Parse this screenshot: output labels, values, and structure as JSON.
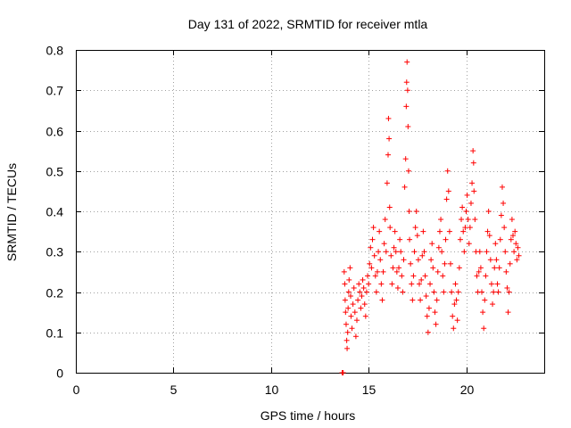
{
  "chart_data": {
    "type": "scatter",
    "title": "Day 131 of 2022, SRMTID for receiver mtla",
    "xlabel": "GPS time / hours",
    "ylabel": "SRMTID / TECUs",
    "xlim": [
      0,
      24
    ],
    "ylim": [
      0,
      0.8
    ],
    "xticks": [
      0,
      5,
      10,
      15,
      20
    ],
    "yticks": [
      0,
      0.1,
      0.2,
      0.3,
      0.4,
      0.5,
      0.6,
      0.7,
      0.8
    ],
    "grid": true,
    "marker": "+",
    "color": "#ff0000",
    "series": [
      {
        "name": "SRMTID",
        "points": [
          [
            13.65,
            0.0
          ],
          [
            13.65,
            0.0
          ],
          [
            13.7,
            0.0
          ],
          [
            13.75,
            0.25
          ],
          [
            13.78,
            0.22
          ],
          [
            13.8,
            0.18
          ],
          [
            13.82,
            0.15
          ],
          [
            13.85,
            0.12
          ],
          [
            13.88,
            0.08
          ],
          [
            13.9,
            0.06
          ],
          [
            13.93,
            0.1
          ],
          [
            13.95,
            0.16
          ],
          [
            13.98,
            0.2
          ],
          [
            14.0,
            0.23
          ],
          [
            14.05,
            0.26
          ],
          [
            14.08,
            0.19
          ],
          [
            14.1,
            0.14
          ],
          [
            14.15,
            0.11
          ],
          [
            14.2,
            0.17
          ],
          [
            14.25,
            0.21
          ],
          [
            14.3,
            0.15
          ],
          [
            14.35,
            0.09
          ],
          [
            14.4,
            0.13
          ],
          [
            14.45,
            0.18
          ],
          [
            14.5,
            0.22
          ],
          [
            14.55,
            0.2
          ],
          [
            14.6,
            0.16
          ],
          [
            14.65,
            0.19
          ],
          [
            14.7,
            0.23
          ],
          [
            14.75,
            0.21
          ],
          [
            14.8,
            0.17
          ],
          [
            14.85,
            0.14
          ],
          [
            14.9,
            0.2
          ],
          [
            14.95,
            0.24
          ],
          [
            15.0,
            0.22
          ],
          [
            15.05,
            0.27
          ],
          [
            15.1,
            0.31
          ],
          [
            15.15,
            0.26
          ],
          [
            15.2,
            0.33
          ],
          [
            15.25,
            0.36
          ],
          [
            15.3,
            0.29
          ],
          [
            15.35,
            0.24
          ],
          [
            15.4,
            0.2
          ],
          [
            15.45,
            0.25
          ],
          [
            15.5,
            0.3
          ],
          [
            15.55,
            0.35
          ],
          [
            15.6,
            0.28
          ],
          [
            15.65,
            0.22
          ],
          [
            15.7,
            0.18
          ],
          [
            15.75,
            0.25
          ],
          [
            15.8,
            0.32
          ],
          [
            15.85,
            0.38
          ],
          [
            15.9,
            0.3
          ],
          [
            15.95,
            0.47
          ],
          [
            16.0,
            0.54
          ],
          [
            16.02,
            0.63
          ],
          [
            16.05,
            0.58
          ],
          [
            16.08,
            0.41
          ],
          [
            16.1,
            0.36
          ],
          [
            16.15,
            0.29
          ],
          [
            16.2,
            0.22
          ],
          [
            16.25,
            0.26
          ],
          [
            16.3,
            0.31
          ],
          [
            16.35,
            0.35
          ],
          [
            16.4,
            0.3
          ],
          [
            16.45,
            0.25
          ],
          [
            16.5,
            0.21
          ],
          [
            16.55,
            0.26
          ],
          [
            16.6,
            0.33
          ],
          [
            16.65,
            0.3
          ],
          [
            16.7,
            0.24
          ],
          [
            16.75,
            0.2
          ],
          [
            16.8,
            0.28
          ],
          [
            16.85,
            0.46
          ],
          [
            16.9,
            0.53
          ],
          [
            16.93,
            0.66
          ],
          [
            16.95,
            0.72
          ],
          [
            16.97,
            0.77
          ],
          [
            17.0,
            0.7
          ],
          [
            17.02,
            0.61
          ],
          [
            17.05,
            0.5
          ],
          [
            17.08,
            0.4
          ],
          [
            17.1,
            0.33
          ],
          [
            17.15,
            0.27
          ],
          [
            17.2,
            0.22
          ],
          [
            17.25,
            0.18
          ],
          [
            17.3,
            0.24
          ],
          [
            17.35,
            0.3
          ],
          [
            17.4,
            0.36
          ],
          [
            17.45,
            0.4
          ],
          [
            17.5,
            0.34
          ],
          [
            17.55,
            0.28
          ],
          [
            17.6,
            0.22
          ],
          [
            17.65,
            0.18
          ],
          [
            17.7,
            0.23
          ],
          [
            17.75,
            0.29
          ],
          [
            17.8,
            0.35
          ],
          [
            17.85,
            0.3
          ],
          [
            17.9,
            0.24
          ],
          [
            17.95,
            0.19
          ],
          [
            18.0,
            0.14
          ],
          [
            18.05,
            0.1
          ],
          [
            18.1,
            0.16
          ],
          [
            18.15,
            0.22
          ],
          [
            18.2,
            0.28
          ],
          [
            18.25,
            0.32
          ],
          [
            18.3,
            0.26
          ],
          [
            18.35,
            0.2
          ],
          [
            18.4,
            0.15
          ],
          [
            18.45,
            0.12
          ],
          [
            18.5,
            0.18
          ],
          [
            18.55,
            0.25
          ],
          [
            18.6,
            0.31
          ],
          [
            18.65,
            0.35
          ],
          [
            18.7,
            0.38
          ],
          [
            18.75,
            0.3
          ],
          [
            18.8,
            0.24
          ],
          [
            18.85,
            0.2
          ],
          [
            18.9,
            0.27
          ],
          [
            18.95,
            0.33
          ],
          [
            19.0,
            0.43
          ],
          [
            19.05,
            0.5
          ],
          [
            19.1,
            0.45
          ],
          [
            19.15,
            0.35
          ],
          [
            19.2,
            0.27
          ],
          [
            19.25,
            0.2
          ],
          [
            19.3,
            0.14
          ],
          [
            19.35,
            0.11
          ],
          [
            19.4,
            0.17
          ],
          [
            19.45,
            0.22
          ],
          [
            19.5,
            0.18
          ],
          [
            19.55,
            0.13
          ],
          [
            19.6,
            0.2
          ],
          [
            19.65,
            0.26
          ],
          [
            19.7,
            0.33
          ],
          [
            19.75,
            0.38
          ],
          [
            19.8,
            0.41
          ],
          [
            19.85,
            0.35
          ],
          [
            19.9,
            0.3
          ],
          [
            19.95,
            0.36
          ],
          [
            20.0,
            0.4
          ],
          [
            20.05,
            0.44
          ],
          [
            20.1,
            0.38
          ],
          [
            20.15,
            0.32
          ],
          [
            20.2,
            0.36
          ],
          [
            20.25,
            0.42
          ],
          [
            20.3,
            0.47
          ],
          [
            20.35,
            0.55
          ],
          [
            20.38,
            0.52
          ],
          [
            20.4,
            0.45
          ],
          [
            20.45,
            0.38
          ],
          [
            20.5,
            0.3
          ],
          [
            20.55,
            0.24
          ],
          [
            20.6,
            0.2
          ],
          [
            20.65,
            0.25
          ],
          [
            20.7,
            0.3
          ],
          [
            20.75,
            0.26
          ],
          [
            20.8,
            0.2
          ],
          [
            20.85,
            0.15
          ],
          [
            20.9,
            0.11
          ],
          [
            20.95,
            0.18
          ],
          [
            21.0,
            0.24
          ],
          [
            21.05,
            0.3
          ],
          [
            21.1,
            0.35
          ],
          [
            21.15,
            0.4
          ],
          [
            21.2,
            0.34
          ],
          [
            21.25,
            0.28
          ],
          [
            21.3,
            0.22
          ],
          [
            21.35,
            0.17
          ],
          [
            21.4,
            0.2
          ],
          [
            21.45,
            0.26
          ],
          [
            21.5,
            0.32
          ],
          [
            21.55,
            0.28
          ],
          [
            21.6,
            0.22
          ],
          [
            21.65,
            0.2
          ],
          [
            21.7,
            0.26
          ],
          [
            21.75,
            0.33
          ],
          [
            21.8,
            0.39
          ],
          [
            21.85,
            0.46
          ],
          [
            21.9,
            0.42
          ],
          [
            21.95,
            0.36
          ],
          [
            22.0,
            0.3
          ],
          [
            22.05,
            0.25
          ],
          [
            22.1,
            0.21
          ],
          [
            22.15,
            0.15
          ],
          [
            22.2,
            0.2
          ],
          [
            22.25,
            0.27
          ],
          [
            22.3,
            0.33
          ],
          [
            22.35,
            0.38
          ],
          [
            22.4,
            0.34
          ],
          [
            22.45,
            0.3
          ],
          [
            22.5,
            0.35
          ],
          [
            22.55,
            0.32
          ],
          [
            22.6,
            0.28
          ],
          [
            22.65,
            0.31
          ],
          [
            22.7,
            0.29
          ]
        ]
      }
    ]
  }
}
